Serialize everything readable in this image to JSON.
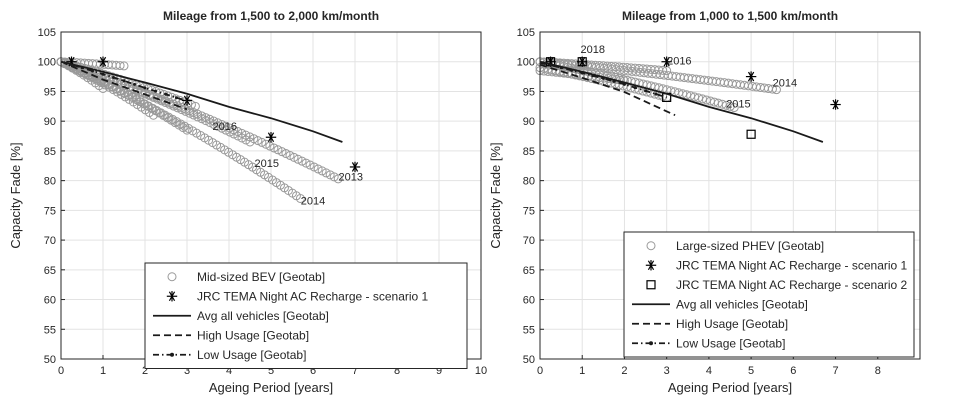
{
  "chart_data": [
    {
      "type": "scatter",
      "title": "Mileage from 1,500 to 2,000 km/month",
      "xlabel": "Ageing Period [years]",
      "ylabel": "Capacity Fade [%]",
      "xlim": [
        0,
        10
      ],
      "ylim": [
        50,
        105
      ],
      "xticks": [
        "0",
        "1",
        "2",
        "3",
        "4",
        "5",
        "6",
        "7",
        "8",
        "9",
        "10"
      ],
      "yticks": [
        "50",
        "55",
        "60",
        "65",
        "70",
        "75",
        "80",
        "85",
        "90",
        "95",
        "100",
        "105"
      ],
      "grid": true,
      "legend_position": "bottom-right",
      "legend": [
        {
          "label": "Mid-sized BEV [Geotab]",
          "marker": "circle"
        },
        {
          "label": "JRC TEMA Night AC Recharge - scenario 1",
          "marker": "asterisk"
        },
        {
          "label": "Avg all vehicles [Geotab]",
          "marker": "solid-line"
        },
        {
          "label": "High Usage [Geotab]",
          "marker": "dashed-line"
        },
        {
          "label": "Low Usage [Geotab]",
          "marker": "dashdot-dot-line"
        }
      ],
      "series": [
        {
          "name": "Mid-sized BEV [Geotab]",
          "kind": "circles",
          "tracks": [
            {
              "x": [
                0.0,
                1.5
              ],
              "y": [
                100,
                99.3
              ]
            },
            {
              "x": [
                0.0,
                5.7
              ],
              "y": [
                100,
                77.0
              ]
            },
            {
              "x": [
                0.0,
                6.6
              ],
              "y": [
                100,
                80.3
              ]
            },
            {
              "x": [
                0.0,
                3.0
              ],
              "y": [
                100,
                88.5
              ]
            },
            {
              "x": [
                0.0,
                4.5
              ],
              "y": [
                100,
                86.5
              ]
            },
            {
              "x": [
                0.0,
                3.2
              ],
              "y": [
                100,
                92.5
              ]
            },
            {
              "x": [
                0.0,
                2.2
              ],
              "y": [
                100,
                91.0
              ]
            },
            {
              "x": [
                0.0,
                1.0
              ],
              "y": [
                100,
                95.5
              ]
            }
          ]
        },
        {
          "name": "JRC TEMA Night AC Recharge - scenario 1",
          "kind": "asterisk",
          "x": [
            0.25,
            1.0,
            3.0,
            5.0,
            7.0
          ],
          "y": [
            100,
            100,
            93.5,
            87.3,
            82.3
          ]
        },
        {
          "name": "Avg all vehicles [Geotab]",
          "kind": "solid",
          "x": [
            0,
            1,
            2,
            3,
            4,
            5,
            6,
            6.7
          ],
          "y": [
            100,
            98.3,
            96.5,
            94.6,
            92.4,
            90.5,
            88.3,
            86.5
          ]
        },
        {
          "name": "High Usage [Geotab]",
          "kind": "dashed",
          "x": [
            0,
            1,
            2,
            3
          ],
          "y": [
            100,
            97.0,
            94.5,
            92.0
          ]
        },
        {
          "name": "Low Usage [Geotab]",
          "kind": "dashdotdot",
          "x": [
            0,
            0.5,
            1,
            1.5,
            2,
            2.5,
            3
          ],
          "y": [
            100,
            99.0,
            97.9,
            96.8,
            95.6,
            94.5,
            93.4
          ]
        }
      ],
      "annotations": [
        {
          "text": "2016",
          "x": 3.9,
          "y": 88.5
        },
        {
          "text": "2015",
          "x": 4.9,
          "y": 82.3
        },
        {
          "text": "2013",
          "x": 6.9,
          "y": 80.0
        },
        {
          "text": "2014",
          "x": 6.0,
          "y": 76.0
        }
      ]
    },
    {
      "type": "scatter",
      "title": "Mileage from 1,000 to 1,500 km/month",
      "xlabel": "Ageing Period [years]",
      "ylabel": "Capacity Fade [%]",
      "xlim": [
        0,
        9
      ],
      "ylim": [
        50,
        105
      ],
      "xticks": [
        "0",
        "1",
        "2",
        "3",
        "4",
        "5",
        "6",
        "7",
        "8"
      ],
      "yticks": [
        "50",
        "55",
        "60",
        "65",
        "70",
        "75",
        "80",
        "85",
        "90",
        "95",
        "100",
        "105"
      ],
      "grid": true,
      "legend_position": "bottom-right",
      "legend": [
        {
          "label": "Large-sized PHEV [Geotab]",
          "marker": "circle"
        },
        {
          "label": "JRC TEMA Night AC Recharge - scenario 1",
          "marker": "asterisk"
        },
        {
          "label": "JRC TEMA Night AC Recharge - scenario 2",
          "marker": "square"
        },
        {
          "label": "Avg all vehicles [Geotab]",
          "marker": "solid-line"
        },
        {
          "label": "High Usage [Geotab]",
          "marker": "dashed-line"
        },
        {
          "label": "Low Usage [Geotab]",
          "marker": "dashdot-dot-line"
        }
      ],
      "series": [
        {
          "name": "Large-sized PHEV [Geotab]",
          "kind": "circles",
          "tracks": [
            {
              "x": [
                0.0,
                3.0
              ],
              "y": [
                100,
                98.5
              ]
            },
            {
              "x": [
                0.0,
                5.6
              ],
              "y": [
                100,
                95.3
              ]
            },
            {
              "x": [
                0.0,
                4.6
              ],
              "y": [
                100,
                92.3
              ]
            },
            {
              "x": [
                0.0,
                3.0
              ],
              "y": [
                99.0,
                94.0
              ]
            },
            {
              "x": [
                0.0,
                2.0
              ],
              "y": [
                98.5,
                96.8
              ]
            }
          ]
        },
        {
          "name": "JRC TEMA Night AC Recharge - scenario 1",
          "kind": "asterisk",
          "x": [
            0.25,
            1.0,
            3.0,
            5.0,
            7.0
          ],
          "y": [
            100,
            100,
            100,
            97.5,
            92.8
          ]
        },
        {
          "name": "JRC TEMA Night AC Recharge - scenario 2",
          "kind": "square",
          "x": [
            0.25,
            1.0,
            3.0,
            5.0
          ],
          "y": [
            100,
            100,
            94.0,
            87.8
          ]
        },
        {
          "name": "Avg all vehicles [Geotab]",
          "kind": "solid",
          "x": [
            0,
            1,
            2,
            3,
            4,
            5,
            6,
            6.7
          ],
          "y": [
            100,
            98.3,
            96.5,
            94.6,
            92.4,
            90.5,
            88.3,
            86.5
          ]
        },
        {
          "name": "High Usage [Geotab]",
          "kind": "dashed",
          "x": [
            0,
            1,
            2,
            3.2
          ],
          "y": [
            99.5,
            97.3,
            94.9,
            91.0
          ]
        },
        {
          "name": "Low Usage [Geotab]",
          "kind": "dashdotdot",
          "x": [
            0,
            0.5,
            1,
            1.5,
            2,
            2.5,
            3
          ],
          "y": [
            99.8,
            99.0,
            98.1,
            97.2,
            96.2,
            95.1,
            94.0
          ]
        }
      ],
      "annotations": [
        {
          "text": "2018",
          "x": 1.25,
          "y": 101.5
        },
        {
          "text": "2016",
          "x": 3.3,
          "y": 99.5
        },
        {
          "text": "2014",
          "x": 5.8,
          "y": 95.8
        },
        {
          "text": "2015",
          "x": 4.7,
          "y": 92.3
        }
      ]
    }
  ]
}
